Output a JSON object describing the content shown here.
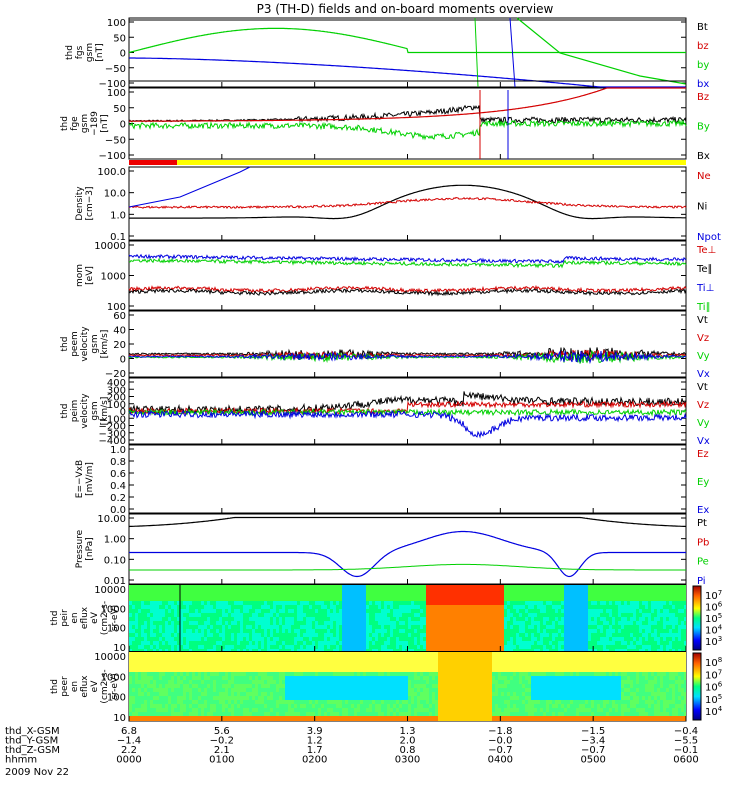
{
  "title": "P3 (TH-D) fields and on-board moments overview",
  "colors": {
    "black": "#000000",
    "red": "#d40000",
    "green": "#00d000",
    "blue": "#0000e0",
    "yellow": "#ffff00",
    "cyan": "#00ffff"
  },
  "chart_data": [
    {
      "id": "p1",
      "type": "line",
      "ylabel_lines": [
        "thd",
        "fgs",
        "gsm",
        "[nT]"
      ],
      "yticks": [
        "100",
        "50",
        "0",
        "−50",
        "−100"
      ],
      "legend": [
        {
          "text": "Bt",
          "color": "black"
        },
        {
          "text": "bz",
          "color": "red"
        },
        {
          "text": "by",
          "color": "green"
        },
        {
          "text": "bx",
          "color": "blue"
        }
      ],
      "ylim": [
        -100,
        100
      ],
      "y_scale": "linear"
    },
    {
      "id": "p2",
      "type": "line",
      "ylabel_lines": [
        "thd",
        "fge",
        "gsm",
        "−189",
        "[nT]"
      ],
      "yticks": [
        "100",
        "50",
        "0",
        "−50",
        "−100"
      ],
      "legend": [
        {
          "text": "Bz",
          "color": "red"
        },
        {
          "text": "By",
          "color": "green"
        },
        {
          "text": "Bx",
          "color": "black"
        }
      ],
      "ylim": [
        -120,
        100
      ],
      "y_scale": "linear"
    },
    {
      "id": "p3",
      "type": "line",
      "ylabel_lines": [
        "Density",
        "[cm−3]"
      ],
      "yticks": [
        "100.0",
        "10.0",
        "1.0",
        "0.1"
      ],
      "legend": [
        {
          "text": "Ne",
          "color": "red"
        },
        {
          "text": "Ni",
          "color": "black"
        },
        {
          "text": "Npot",
          "color": "blue"
        }
      ],
      "ylim": [
        0.05,
        100
      ],
      "y_scale": "log"
    },
    {
      "id": "p4",
      "type": "line",
      "ylabel_lines": [
        "mom",
        "[eV]"
      ],
      "yticks": [
        "10000",
        "1000",
        "100"
      ],
      "legend": [
        {
          "text": "Te⊥",
          "color": "red"
        },
        {
          "text": "Te∥",
          "color": "black"
        },
        {
          "text": "Ti⊥",
          "color": "blue"
        },
        {
          "text": "Ti∥",
          "color": "green"
        }
      ],
      "ylim": [
        50,
        10000
      ],
      "y_scale": "log"
    },
    {
      "id": "p5",
      "type": "line",
      "ylabel_lines": [
        "thd",
        "peem",
        "velocity",
        "gsm",
        "[km/s]"
      ],
      "yticks": [
        "60",
        "40",
        "20",
        "0",
        "−20"
      ],
      "legend": [
        {
          "text": "Vt",
          "color": "black"
        },
        {
          "text": "Vz",
          "color": "red"
        },
        {
          "text": "Vy",
          "color": "green"
        },
        {
          "text": "Vx",
          "color": "blue"
        }
      ],
      "ylim": [
        -30,
        60
      ],
      "y_scale": "linear"
    },
    {
      "id": "p6",
      "type": "line",
      "ylabel_lines": [
        "thd",
        "peim",
        "velocity",
        "gsm",
        "[km/s]"
      ],
      "yticks": [
        "400",
        "300",
        "200",
        "100",
        "0",
        "−100",
        "−200",
        "−300",
        "−400"
      ],
      "legend": [
        {
          "text": "Vt",
          "color": "black"
        },
        {
          "text": "Vz",
          "color": "red"
        },
        {
          "text": "Vy",
          "color": "green"
        },
        {
          "text": "Vx",
          "color": "blue"
        }
      ],
      "ylim": [
        -450,
        400
      ],
      "y_scale": "linear"
    },
    {
      "id": "p7",
      "type": "line",
      "ylabel_lines": [
        "E=−VxB",
        "[mV/m]"
      ],
      "yticks": [
        "1.0",
        "0.8",
        "0.6",
        "0.4",
        "0.2",
        "0.0"
      ],
      "legend": [
        {
          "text": "Ez",
          "color": "red"
        },
        {
          "text": "Ey",
          "color": "green"
        },
        {
          "text": "Ex",
          "color": "blue"
        }
      ],
      "ylim": [
        0,
        1
      ],
      "y_scale": "linear"
    },
    {
      "id": "p8",
      "type": "line",
      "ylabel_lines": [
        "Pressure",
        "[nPa]"
      ],
      "yticks": [
        "10.00",
        "1.00",
        "0.10",
        "0.01"
      ],
      "legend": [
        {
          "text": "Pt",
          "color": "black"
        },
        {
          "text": "Pb",
          "color": "red"
        },
        {
          "text": "Pe",
          "color": "green"
        },
        {
          "text": "Pi",
          "color": "blue"
        }
      ],
      "ylim": [
        0.005,
        20
      ],
      "y_scale": "log"
    },
    {
      "id": "p9",
      "type": "heatmap",
      "ylabel_lines": [
        "thd",
        "peir",
        "en",
        "eflux",
        "eV",
        "(cm2-s-",
        "sr-eV)"
      ],
      "yticks": [
        "10000",
        "1000",
        "100",
        "10"
      ],
      "colorbar_ticks": [
        {
          "base": "10",
          "exp": "7"
        },
        {
          "base": "10",
          "exp": "6"
        },
        {
          "base": "10",
          "exp": "5"
        },
        {
          "base": "10",
          "exp": "4"
        },
        {
          "base": "10",
          "exp": "3"
        }
      ],
      "y_scale": "log"
    },
    {
      "id": "p10",
      "type": "heatmap",
      "ylabel_lines": [
        "thd",
        "peer",
        "en",
        "eflux",
        "eV",
        "(cm2-s-",
        "sr-eV)"
      ],
      "yticks": [
        "10000",
        "1000",
        "100",
        "10"
      ],
      "colorbar_ticks": [
        {
          "base": "10",
          "exp": "8"
        },
        {
          "base": "10",
          "exp": "7"
        },
        {
          "base": "10",
          "exp": "6"
        },
        {
          "base": "10",
          "exp": "5"
        },
        {
          "base": "10",
          "exp": "4"
        }
      ],
      "y_scale": "log"
    }
  ],
  "xaxis": {
    "row_labels": [
      "thd_X-GSM",
      "thd_Y-GSM",
      "thd_Z-GSM",
      "hhmm"
    ],
    "rows": [
      [
        "6.8",
        "5.6",
        "3.9",
        "1.3",
        "−1.8",
        "−1.5",
        "−0.4"
      ],
      [
        "−1.4",
        "−0.2",
        "1.2",
        "2.0",
        "−0.0",
        "−3.4",
        "−5.5"
      ],
      [
        "2.2",
        "2.1",
        "1.7",
        "0.8",
        "−0.7",
        "−0.7",
        "−0.1"
      ],
      [
        "0000",
        "0100",
        "0200",
        "0300",
        "0400",
        "0500",
        "0600"
      ]
    ],
    "date": "2009 Nov 22"
  }
}
